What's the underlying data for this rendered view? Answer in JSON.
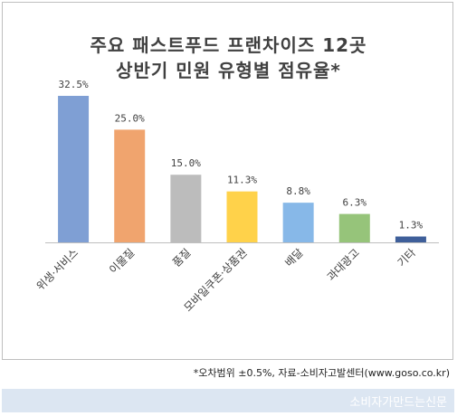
{
  "chart_data": {
    "type": "bar",
    "title_line1": "주요 패스트푸드 프랜차이즈 12곳",
    "title_line2": "상반기 민원 유형별 점유율*",
    "categories": [
      "위생·서비스",
      "이물질",
      "품질",
      "모바일쿠폰·상품권",
      "배달",
      "과대광고",
      "기타"
    ],
    "values": [
      32.5,
      25.0,
      15.0,
      11.3,
      8.8,
      6.3,
      1.3
    ],
    "value_labels": [
      "32.5%",
      "25.0%",
      "15.0%",
      "11.3%",
      "8.8%",
      "6.3%",
      "1.3%"
    ],
    "colors": [
      "#7f9fd4",
      "#f0a46e",
      "#bcbcbc",
      "#ffd24a",
      "#87b8e8",
      "#96c47a",
      "#3f5f9a"
    ],
    "ylim": [
      0,
      32.5
    ],
    "grid": false,
    "legend": "none"
  },
  "footnote": "*오차범위 ±0.5%, 자료-소비자고발센터(www.goso.co.kr)",
  "brand": "소비자가만드는신문"
}
